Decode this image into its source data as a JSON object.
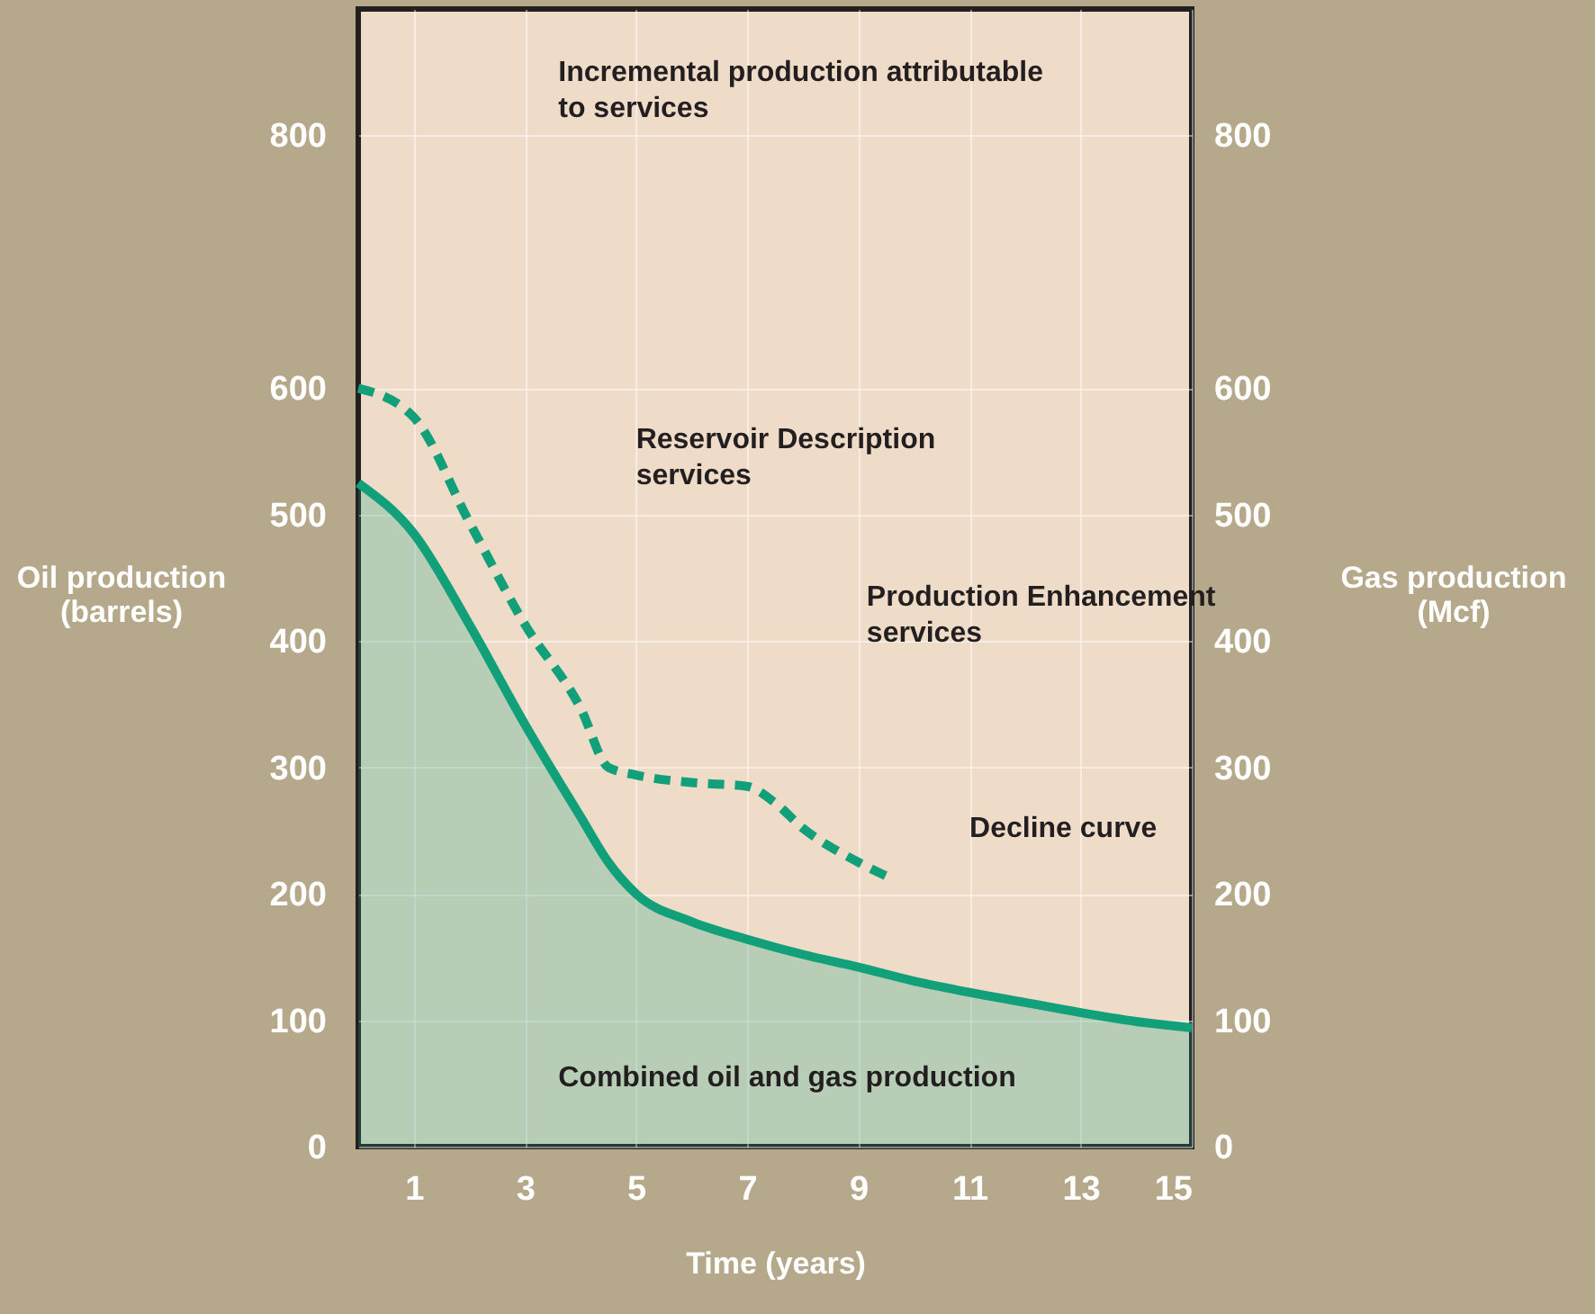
{
  "chart_data": {
    "type": "area",
    "xlabel": "Time (years)",
    "ylabel": "Oil production (barrels)",
    "y2label": "Gas production (Mcf)",
    "x": [
      0,
      1,
      2,
      3,
      4,
      4.5,
      5,
      6,
      7,
      8,
      9,
      10,
      11,
      12,
      13,
      14,
      15
    ],
    "series": [
      {
        "color": "#12a07a",
        "line_style": "solid",
        "values": [
          525,
          485,
          413,
          334,
          261,
          225,
          200,
          178,
          164,
          152,
          142,
          131,
          122,
          114,
          106,
          99,
          94
        ]
      },
      {
        "type": "line",
        "color": "#12a07a",
        "line_style": "dashed",
        "x": [
          0,
          1,
          2,
          3,
          4,
          4.5,
          5,
          6,
          7,
          7.5,
          8,
          9,
          9.6
        ],
        "values": [
          600,
          577,
          494,
          413,
          347,
          300,
          294,
          288,
          285,
          272,
          252,
          225,
          212
        ]
      }
    ],
    "xlim": [
      0,
      15
    ],
    "xticks": [
      1,
      3,
      5,
      7,
      9,
      11,
      13,
      15
    ],
    "ylim": [
      0,
      900
    ],
    "yticks": [
      0,
      100,
      200,
      300,
      400,
      500,
      600,
      800
    ],
    "y2lim": [
      0,
      900
    ],
    "y2ticks": [
      0,
      100,
      200,
      300,
      400,
      500,
      600,
      800
    ],
    "grid": true,
    "annotations": [
      "Incremental production attributable\nto services",
      "Reservoir Description\nservices",
      "Production Enhancement\nservices",
      "Decline curve",
      "Combined oil and gas production"
    ]
  }
}
